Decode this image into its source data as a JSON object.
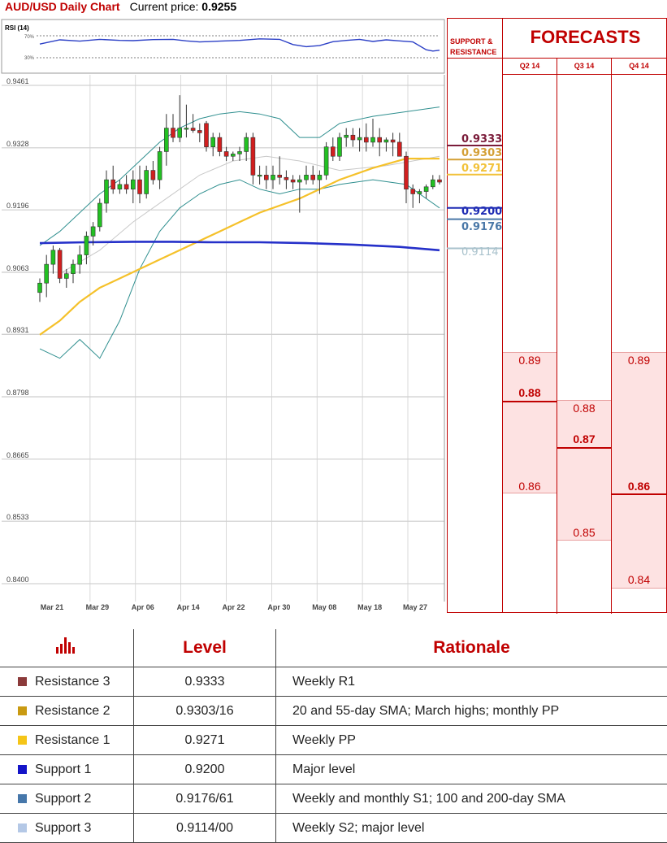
{
  "header": {
    "title": "AUD/USD Daily Chart",
    "price_label": "Current price:",
    "price_value": "0.9255"
  },
  "rsi": {
    "label": "RSI (14)",
    "levels": [
      "70%",
      "30%"
    ]
  },
  "chart_data": {
    "type": "candlestick",
    "ylim": [
      0.84,
      0.9461
    ],
    "yticks": [
      "0.9461",
      "0.9328",
      "0.9196",
      "0.9063",
      "0.8931",
      "0.8798",
      "0.8665",
      "0.8533",
      "0.8400"
    ],
    "xticks": [
      "Mar 21",
      "Mar 29",
      "Apr 06",
      "Apr 14",
      "Apr 22",
      "Apr 30",
      "May 08",
      "May 18",
      "May 27"
    ],
    "candles": [
      [
        0.902,
        0.905,
        0.9,
        0.904
      ],
      [
        0.904,
        0.91,
        0.901,
        0.908
      ],
      [
        0.908,
        0.912,
        0.906,
        0.911
      ],
      [
        0.911,
        0.9115,
        0.904,
        0.905
      ],
      [
        0.905,
        0.907,
        0.903,
        0.906
      ],
      [
        0.906,
        0.909,
        0.904,
        0.908
      ],
      [
        0.908,
        0.912,
        0.906,
        0.91
      ],
      [
        0.91,
        0.915,
        0.908,
        0.914
      ],
      [
        0.914,
        0.917,
        0.912,
        0.916
      ],
      [
        0.916,
        0.922,
        0.915,
        0.921
      ],
      [
        0.921,
        0.928,
        0.919,
        0.926
      ],
      [
        0.926,
        0.929,
        0.923,
        0.924
      ],
      [
        0.924,
        0.926,
        0.923,
        0.925
      ],
      [
        0.925,
        0.927,
        0.923,
        0.924
      ],
      [
        0.924,
        0.928,
        0.921,
        0.926
      ],
      [
        0.926,
        0.929,
        0.921,
        0.923
      ],
      [
        0.923,
        0.929,
        0.922,
        0.928
      ],
      [
        0.928,
        0.93,
        0.925,
        0.926
      ],
      [
        0.926,
        0.933,
        0.924,
        0.932
      ],
      [
        0.932,
        0.94,
        0.929,
        0.937
      ],
      [
        0.937,
        0.94,
        0.934,
        0.935
      ],
      [
        0.935,
        0.944,
        0.934,
        0.937
      ],
      [
        0.937,
        0.942,
        0.935,
        0.937
      ],
      [
        0.937,
        0.94,
        0.936,
        0.9365
      ],
      [
        0.9365,
        0.938,
        0.934,
        0.936
      ],
      [
        0.938,
        0.9385,
        0.932,
        0.933
      ],
      [
        0.933,
        0.936,
        0.931,
        0.935
      ],
      [
        0.935,
        0.936,
        0.931,
        0.932
      ],
      [
        0.932,
        0.933,
        0.93,
        0.931
      ],
      [
        0.931,
        0.932,
        0.93,
        0.9315
      ],
      [
        0.9315,
        0.933,
        0.93,
        0.932
      ],
      [
        0.932,
        0.936,
        0.93,
        0.935
      ],
      [
        0.935,
        0.936,
        0.925,
        0.927
      ],
      [
        0.927,
        0.929,
        0.925,
        0.927
      ],
      [
        0.927,
        0.929,
        0.924,
        0.926
      ],
      [
        0.926,
        0.929,
        0.924,
        0.927
      ],
      [
        0.927,
        0.931,
        0.925,
        0.9265
      ],
      [
        0.9265,
        0.928,
        0.924,
        0.926
      ],
      [
        0.926,
        0.927,
        0.924,
        0.9255
      ],
      [
        0.9255,
        0.927,
        0.919,
        0.926
      ],
      [
        0.926,
        0.929,
        0.925,
        0.927
      ],
      [
        0.927,
        0.929,
        0.925,
        0.926
      ],
      [
        0.926,
        0.928,
        0.923,
        0.927
      ],
      [
        0.927,
        0.934,
        0.926,
        0.933
      ],
      [
        0.933,
        0.935,
        0.93,
        0.931
      ],
      [
        0.931,
        0.936,
        0.93,
        0.935
      ],
      [
        0.935,
        0.937,
        0.933,
        0.9355
      ],
      [
        0.9355,
        0.937,
        0.933,
        0.9345
      ],
      [
        0.9345,
        0.937,
        0.932,
        0.935
      ],
      [
        0.935,
        0.938,
        0.932,
        0.934
      ],
      [
        0.934,
        0.939,
        0.933,
        0.935
      ],
      [
        0.935,
        0.937,
        0.931,
        0.934
      ],
      [
        0.934,
        0.935,
        0.932,
        0.9345
      ],
      [
        0.9345,
        0.936,
        0.931,
        0.934
      ],
      [
        0.934,
        0.936,
        0.931,
        0.931
      ],
      [
        0.931,
        0.932,
        0.921,
        0.924
      ],
      [
        0.924,
        0.925,
        0.92,
        0.923
      ],
      [
        0.923,
        0.924,
        0.921,
        0.9235
      ],
      [
        0.9235,
        0.925,
        0.922,
        0.9245
      ],
      [
        0.9245,
        0.927,
        0.924,
        0.926
      ],
      [
        0.926,
        0.927,
        0.925,
        0.9255
      ]
    ],
    "bollinger_upper": [
      0.912,
      0.915,
      0.919,
      0.923,
      0.926,
      0.93,
      0.934,
      0.937,
      0.939,
      0.94,
      0.9405,
      0.94,
      0.939,
      0.935,
      0.935,
      0.938,
      0.9395,
      0.9405,
      0.9415
    ],
    "bollinger_lower": [
      0.89,
      0.888,
      0.892,
      0.888,
      0.896,
      0.907,
      0.915,
      0.92,
      0.923,
      0.925,
      0.926,
      0.924,
      0.923,
      0.924,
      0.924,
      0.925,
      0.926,
      0.925,
      0.92
    ],
    "bollinger_x": [
      0,
      3,
      6,
      9,
      12,
      15,
      18,
      21,
      24,
      27,
      30,
      33,
      36,
      39,
      42,
      45,
      50,
      55,
      60
    ],
    "sma_yellow": [
      0.893,
      0.896,
      0.9,
      0.903,
      0.905,
      0.907,
      0.909,
      0.911,
      0.913,
      0.915,
      0.917,
      0.919,
      0.9205,
      0.922,
      0.924,
      0.926,
      0.9285,
      0.9305,
      0.9305
    ],
    "sma_yellow_x": [
      0,
      3,
      6,
      9,
      12,
      15,
      18,
      21,
      24,
      27,
      30,
      33,
      36,
      39,
      42,
      45,
      50,
      55,
      60
    ],
    "sma_blue": [
      0.9125,
      0.9127,
      0.9128,
      0.9128,
      0.9127,
      0.9127,
      0.9125,
      0.9122,
      0.9117,
      0.911
    ],
    "sma_blue_x": [
      0,
      7,
      14,
      20,
      26,
      33,
      40,
      47,
      54,
      60
    ],
    "sma_grey": [
      0.906,
      0.911,
      0.917,
      0.922,
      0.927,
      0.93,
      0.931,
      0.93,
      0.928,
      0.929,
      0.931
    ],
    "sma_grey_x": [
      3,
      9,
      14,
      19,
      24,
      29,
      34,
      39,
      45,
      52,
      60
    ],
    "rsi_values": [
      0.62,
      0.78,
      0.73,
      0.8,
      0.76,
      0.75,
      0.79,
      0.8,
      0.74,
      0.7,
      0.73,
      0.76,
      0.82,
      0.8,
      0.6,
      0.52,
      0.56,
      0.71,
      0.76,
      0.8,
      0.72,
      0.78,
      0.74,
      0.7,
      0.4,
      0.35,
      0.38
    ],
    "rsi_x": [
      0,
      3,
      6,
      9,
      12,
      14,
      17,
      20,
      22,
      24,
      27,
      30,
      33,
      36,
      38,
      40,
      42,
      44,
      46,
      48,
      50,
      52,
      54,
      56,
      58,
      59,
      60
    ]
  },
  "levels": {
    "r3": {
      "value": "0.9333",
      "num": 0.9333,
      "color": "#7b1c3a"
    },
    "r2": {
      "value": "0.9303",
      "num": 0.9303,
      "color": "#d4a037"
    },
    "r1": {
      "value": "0.9271",
      "num": 0.9271,
      "color": "#f2c23a"
    },
    "s1": {
      "value": "0.9200",
      "num": 0.92,
      "color": "#1f2cb4"
    },
    "s2": {
      "value": "0.9176",
      "num": 0.9176,
      "color": "#4a78a8"
    },
    "s3": {
      "value": "0.9114",
      "num": 0.9114,
      "color": "#a9c2cc"
    }
  },
  "side_panel": {
    "sr_label": "SUPPORT & RESISTANCE",
    "forecasts_title": "FORECASTS",
    "columns": [
      "Q2 14",
      "Q3 14",
      "Q4 14"
    ],
    "q2": {
      "high": "0.89",
      "mid": "0.88",
      "low": "0.86"
    },
    "q3": {
      "high": "0.88",
      "mid": "0.87",
      "low": "0.85"
    },
    "q4": {
      "high": "0.89",
      "mid": "0.86",
      "low": "0.84"
    }
  },
  "table": {
    "headers": {
      "level": "Level",
      "rationale": "Rationale"
    },
    "rows": [
      {
        "name": "Resistance 3",
        "level": "0.9333",
        "rationale": "Weekly R1",
        "color": "#8b3a3a"
      },
      {
        "name": "Resistance 2",
        "level": "0.9303/16",
        "rationale": "20 and 55-day SMA; March highs; monthly PP",
        "color": "#c99a12"
      },
      {
        "name": "Resistance 1",
        "level": "0.9271",
        "rationale": "Weekly PP",
        "color": "#f5c518"
      },
      {
        "name": "Support 1",
        "level": "0.9200",
        "rationale": "Major level",
        "color": "#1414c8"
      },
      {
        "name": "Support 2",
        "level": "0.9176/61",
        "rationale": "Weekly and monthly S1; 100 and 200-day SMA",
        "color": "#4677aa"
      },
      {
        "name": "Support 3",
        "level": "0.9114/00",
        "rationale": "Weekly S2; major level",
        "color": "#b4c8e6"
      }
    ]
  }
}
